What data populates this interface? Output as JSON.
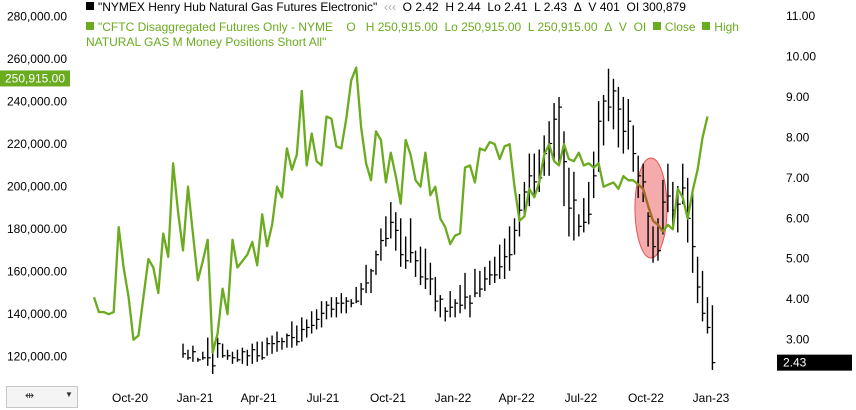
{
  "legend": {
    "series1": {
      "name": "\"NYMEX Henry Hub Natural Gas Futures Electronic\"",
      "stats": [
        {
          "label": "O",
          "value": "2.42"
        },
        {
          "label": "H",
          "value": "2.44"
        },
        {
          "label": "Lo",
          "value": "2.41"
        },
        {
          "label": "L",
          "value": "2.43"
        },
        {
          "label": "Δ",
          "value": ""
        },
        {
          "label": "V",
          "value": "401"
        },
        {
          "label": "OI",
          "value": "300,879"
        }
      ]
    },
    "series2": {
      "name_line1": "\"CFTC Disaggregated Futures Only - NYME",
      "name_line2": "NATURAL GAS M Money Positions Short All\"",
      "stats": [
        {
          "label": "O",
          "value": ""
        },
        {
          "label": "H",
          "value": "250,915.00"
        },
        {
          "label": "Lo",
          "value": "250,915.00"
        },
        {
          "label": "L",
          "value": "250,915.00"
        },
        {
          "label": "Δ",
          "value": ""
        },
        {
          "label": "V",
          "value": ""
        },
        {
          "label": "OI",
          "value": ""
        }
      ],
      "extra": [
        "Close",
        "High"
      ]
    }
  },
  "colors": {
    "green": "#6aab1f",
    "bars": "#000000",
    "ellipse_fill": "#f4a3a3",
    "ellipse_stroke": "#e04040",
    "ellipse_line": "#a86a2a"
  },
  "chart_data": {
    "type": "line",
    "x_ticks": [
      "Oct-20",
      "Jan-21",
      "Apr-21",
      "Jul-21",
      "Oct-21",
      "Jan-22",
      "Apr-22",
      "Jul-22",
      "Oct-22",
      "Jan-23"
    ],
    "left_axis": {
      "ticks": [
        "280,000.00",
        "260,000.00",
        "240,000.00",
        "220,000.00",
        "200,000.00",
        "180,000.00",
        "160,000.00",
        "140,000.00",
        "120,000.00"
      ],
      "range": [
        110000,
        285000
      ],
      "current_label": "250,915.00"
    },
    "right_axis": {
      "ticks": [
        "11.00",
        "10.00",
        "9.00",
        "8.00",
        "7.00",
        "6.00",
        "5.00",
        "4.00",
        "3.00"
      ],
      "range": [
        2.05,
        11.25
      ],
      "current_label": "2.43"
    },
    "series": [
      {
        "name": "\"CFTC Disaggregated Futures Only - NYME NATURAL GAS M Money Positions Short All\"",
        "axis": "left",
        "style": "line",
        "x": [
          "2020-08-11",
          "2020-08-18",
          "2020-08-25",
          "2020-09-01",
          "2020-09-08",
          "2020-09-15",
          "2020-09-22",
          "2020-09-29",
          "2020-10-06",
          "2020-10-13",
          "2020-10-20",
          "2020-10-27",
          "2020-11-03",
          "2020-11-10",
          "2020-11-17",
          "2020-11-24",
          "2020-12-01",
          "2020-12-08",
          "2020-12-15",
          "2020-12-22",
          "2020-12-29",
          "2021-01-05",
          "2021-01-12",
          "2021-01-19",
          "2021-01-26",
          "2021-02-02",
          "2021-02-09",
          "2021-02-16",
          "2021-02-23",
          "2021-03-02",
          "2021-03-09",
          "2021-03-16",
          "2021-03-23",
          "2021-03-30",
          "2021-04-06",
          "2021-04-13",
          "2021-04-20",
          "2021-04-27",
          "2021-05-04",
          "2021-05-11",
          "2021-05-18",
          "2021-05-25",
          "2021-06-01",
          "2021-06-08",
          "2021-06-15",
          "2021-06-22",
          "2021-06-29",
          "2021-07-06",
          "2021-07-13",
          "2021-07-20",
          "2021-07-27",
          "2021-08-03",
          "2021-08-10",
          "2021-08-17",
          "2021-08-24",
          "2021-08-31",
          "2021-09-07",
          "2021-09-14",
          "2021-09-21",
          "2021-09-28",
          "2021-10-05",
          "2021-10-12",
          "2021-10-19",
          "2021-10-26",
          "2021-11-02",
          "2021-11-09",
          "2021-11-16",
          "2021-11-23",
          "2021-11-30",
          "2021-12-07",
          "2021-12-14",
          "2021-12-21",
          "2021-12-28",
          "2022-01-04",
          "2022-01-11",
          "2022-01-18",
          "2022-01-25",
          "2022-02-01",
          "2022-02-08",
          "2022-02-15",
          "2022-02-22",
          "2022-03-01",
          "2022-03-08",
          "2022-03-15",
          "2022-03-22",
          "2022-03-29",
          "2022-04-05",
          "2022-04-12",
          "2022-04-19",
          "2022-04-26",
          "2022-05-03",
          "2022-05-10",
          "2022-05-17",
          "2022-05-24",
          "2022-05-31",
          "2022-06-07",
          "2022-06-14",
          "2022-06-21",
          "2022-06-28",
          "2022-07-05",
          "2022-07-12",
          "2022-07-19",
          "2022-07-26",
          "2022-08-02",
          "2022-08-09",
          "2022-08-16",
          "2022-08-23",
          "2022-08-30",
          "2022-09-06",
          "2022-09-13",
          "2022-09-20",
          "2022-09-27",
          "2022-10-04",
          "2022-10-11",
          "2022-10-18",
          "2022-10-25",
          "2022-11-01",
          "2022-11-08",
          "2022-11-15",
          "2022-11-22",
          "2022-11-29",
          "2022-12-06",
          "2022-12-13",
          "2022-12-20",
          "2022-12-27"
        ],
        "values": [
          148000,
          141000,
          141000,
          140000,
          141000,
          181000,
          162000,
          148000,
          128000,
          130000,
          148000,
          166000,
          162000,
          150000,
          178000,
          167000,
          211000,
          188000,
          170000,
          200000,
          178000,
          156000,
          165000,
          175000,
          122000,
          131000,
          152000,
          140000,
          175000,
          162000,
          165000,
          168000,
          174000,
          163000,
          187000,
          172000,
          182000,
          200000,
          195000,
          218000,
          208000,
          215000,
          245000,
          210000,
          225000,
          212000,
          210000,
          233000,
          232000,
          219000,
          218000,
          232000,
          250000,
          256000,
          228000,
          211000,
          203000,
          226000,
          222000,
          202000,
          216000,
          205000,
          192000,
          222000,
          215000,
          203000,
          200000,
          216000,
          196000,
          200000,
          185000,
          181000,
          173000,
          177000,
          178000,
          209000,
          210000,
          202000,
          218000,
          217000,
          221000,
          220000,
          213000,
          219000,
          220000,
          200000,
          184000,
          186000,
          199000,
          195000,
          202000,
          215000,
          220000,
          212000,
          210000,
          220000,
          213000,
          212000,
          216000,
          210000,
          211000,
          209000,
          211000,
          200000,
          201000,
          202000,
          199000,
          205000,
          203000,
          203000,
          201000,
          199000,
          191000,
          184000,
          182000,
          179000,
          182000,
          180000,
          199000,
          195000,
          185000,
          198000,
          208000,
          223000,
          233000
        ]
      },
      {
        "name": "\"NYMEX Henry Hub Natural Gas Futures Electronic\"",
        "axis": "right",
        "style": "ohlc",
        "x": [
          "2020-12-15",
          "2020-12-22",
          "2020-12-29",
          "2021-01-05",
          "2021-01-12",
          "2021-01-19",
          "2021-01-26",
          "2021-02-02",
          "2021-02-09",
          "2021-02-16",
          "2021-02-23",
          "2021-03-02",
          "2021-03-09",
          "2021-03-16",
          "2021-03-23",
          "2021-03-30",
          "2021-04-06",
          "2021-04-13",
          "2021-04-20",
          "2021-04-27",
          "2021-05-04",
          "2021-05-11",
          "2021-05-18",
          "2021-05-25",
          "2021-06-01",
          "2021-06-08",
          "2021-06-15",
          "2021-06-22",
          "2021-06-29",
          "2021-07-06",
          "2021-07-13",
          "2021-07-20",
          "2021-07-27",
          "2021-08-03",
          "2021-08-10",
          "2021-08-17",
          "2021-08-24",
          "2021-08-31",
          "2021-09-07",
          "2021-09-14",
          "2021-09-21",
          "2021-09-28",
          "2021-10-05",
          "2021-10-12",
          "2021-10-19",
          "2021-10-26",
          "2021-11-02",
          "2021-11-09",
          "2021-11-16",
          "2021-11-23",
          "2021-11-30",
          "2021-12-07",
          "2021-12-14",
          "2021-12-21",
          "2021-12-28",
          "2022-01-04",
          "2022-01-11",
          "2022-01-18",
          "2022-01-25",
          "2022-02-01",
          "2022-02-08",
          "2022-02-15",
          "2022-02-22",
          "2022-03-01",
          "2022-03-08",
          "2022-03-15",
          "2022-03-22",
          "2022-03-29",
          "2022-04-05",
          "2022-04-12",
          "2022-04-19",
          "2022-04-26",
          "2022-05-03",
          "2022-05-10",
          "2022-05-17",
          "2022-05-24",
          "2022-05-31",
          "2022-06-07",
          "2022-06-14",
          "2022-06-21",
          "2022-06-28",
          "2022-07-05",
          "2022-07-12",
          "2022-07-19",
          "2022-07-26",
          "2022-08-02",
          "2022-08-09",
          "2022-08-16",
          "2022-08-23",
          "2022-08-30",
          "2022-09-06",
          "2022-09-13",
          "2022-09-20",
          "2022-09-27",
          "2022-10-04",
          "2022-10-11",
          "2022-10-18",
          "2022-10-25",
          "2022-11-01",
          "2022-11-08",
          "2022-11-15",
          "2022-11-22",
          "2022-11-29",
          "2022-12-06",
          "2022-12-13",
          "2022-12-20",
          "2022-12-27",
          "2023-01-03"
        ],
        "high": [
          2.9,
          2.75,
          2.85,
          2.55,
          2.7,
          3.05,
          2.95,
          3.05,
          2.9,
          2.75,
          2.7,
          2.75,
          2.8,
          2.75,
          2.9,
          2.95,
          2.95,
          3.05,
          3.1,
          3.2,
          3.05,
          3.15,
          3.45,
          3.35,
          3.55,
          3.5,
          3.7,
          3.75,
          3.95,
          3.95,
          4.05,
          4.05,
          4.15,
          4.05,
          4.0,
          4.3,
          4.4,
          4.85,
          4.75,
          5.2,
          5.75,
          6.05,
          6.4,
          6.15,
          6.0,
          5.55,
          6.0,
          5.2,
          5.3,
          5.25,
          4.9,
          4.55,
          4.1,
          3.8,
          4.2,
          4.0,
          4.35,
          4.65,
          4.1,
          4.75,
          4.7,
          4.8,
          4.95,
          5.05,
          5.35,
          5.5,
          5.8,
          6.0,
          6.6,
          6.9,
          7.6,
          7.6,
          7.7,
          8.05,
          8.4,
          8.85,
          9.0,
          8.15,
          7.25,
          7.15,
          6.1,
          6.5,
          6.9,
          7.65,
          8.9,
          9.05,
          9.7,
          9.45,
          9.25,
          9.0,
          8.95,
          8.3,
          7.55,
          7.35,
          6.15,
          5.8,
          6.0,
          6.95,
          7.35,
          6.9,
          6.8,
          7.35,
          7.0,
          6.65,
          5.05,
          4.7,
          4.05,
          3.85
        ],
        "low": [
          2.55,
          2.5,
          2.45,
          2.45,
          2.5,
          2.35,
          2.15,
          2.55,
          2.55,
          2.5,
          2.4,
          2.45,
          2.4,
          2.35,
          2.4,
          2.45,
          2.5,
          2.6,
          2.65,
          2.7,
          2.75,
          2.8,
          2.8,
          2.85,
          2.95,
          3.05,
          3.15,
          3.25,
          3.3,
          3.5,
          3.55,
          3.55,
          3.65,
          3.65,
          3.8,
          3.9,
          3.85,
          4.15,
          4.15,
          4.6,
          4.95,
          5.3,
          5.5,
          5.2,
          4.8,
          4.75,
          4.9,
          4.55,
          4.35,
          4.25,
          4.1,
          3.7,
          3.55,
          3.45,
          3.55,
          3.55,
          3.65,
          3.75,
          3.55,
          4.05,
          4.05,
          4.2,
          4.35,
          4.4,
          4.5,
          4.5,
          4.7,
          5.1,
          5.55,
          6.05,
          6.3,
          6.5,
          6.65,
          7.05,
          7.05,
          7.4,
          7.35,
          6.3,
          5.55,
          5.45,
          5.55,
          5.65,
          5.85,
          6.5,
          7.15,
          7.8,
          8.4,
          8.2,
          7.75,
          7.6,
          7.7,
          7.15,
          6.5,
          6.4,
          5.3,
          4.9,
          4.95,
          5.6,
          6.15,
          5.75,
          5.65,
          6.35,
          5.4,
          4.65,
          3.9,
          3.45,
          3.15,
          2.25
        ],
        "close": [
          2.65,
          2.55,
          2.7,
          2.5,
          2.55,
          2.55,
          2.35,
          2.9,
          2.6,
          2.6,
          2.55,
          2.5,
          2.7,
          2.6,
          2.75,
          2.6,
          2.55,
          2.9,
          2.9,
          2.95,
          2.95,
          3.1,
          3.05,
          2.95,
          3.25,
          3.3,
          3.35,
          3.5,
          3.65,
          3.85,
          3.75,
          3.9,
          3.9,
          3.95,
          3.9,
          3.95,
          4.25,
          4.4,
          4.7,
          5.1,
          5.45,
          5.5,
          5.9,
          5.7,
          5.1,
          4.95,
          5.15,
          4.95,
          4.55,
          4.5,
          4.5,
          3.95,
          4.0,
          3.7,
          3.8,
          3.9,
          3.85,
          4.05,
          3.9,
          4.15,
          4.25,
          4.5,
          4.6,
          4.6,
          4.8,
          5.05,
          5.1,
          5.7,
          6.2,
          6.65,
          7.05,
          6.9,
          7.0,
          7.6,
          7.85,
          8.45,
          8.75,
          7.4,
          6.25,
          6.45,
          5.8,
          5.9,
          6.1,
          7.05,
          8.4,
          8.9,
          8.75,
          9.15,
          8.7,
          8.15,
          8.4,
          7.6,
          7.05,
          6.9,
          6.05,
          5.3,
          5.2,
          6.4,
          6.55,
          6.2,
          6.35,
          6.75,
          6.0,
          5.3,
          4.3,
          3.65,
          3.3,
          2.43
        ]
      }
    ],
    "xlabel": "",
    "ylabel": "",
    "grid": false
  }
}
